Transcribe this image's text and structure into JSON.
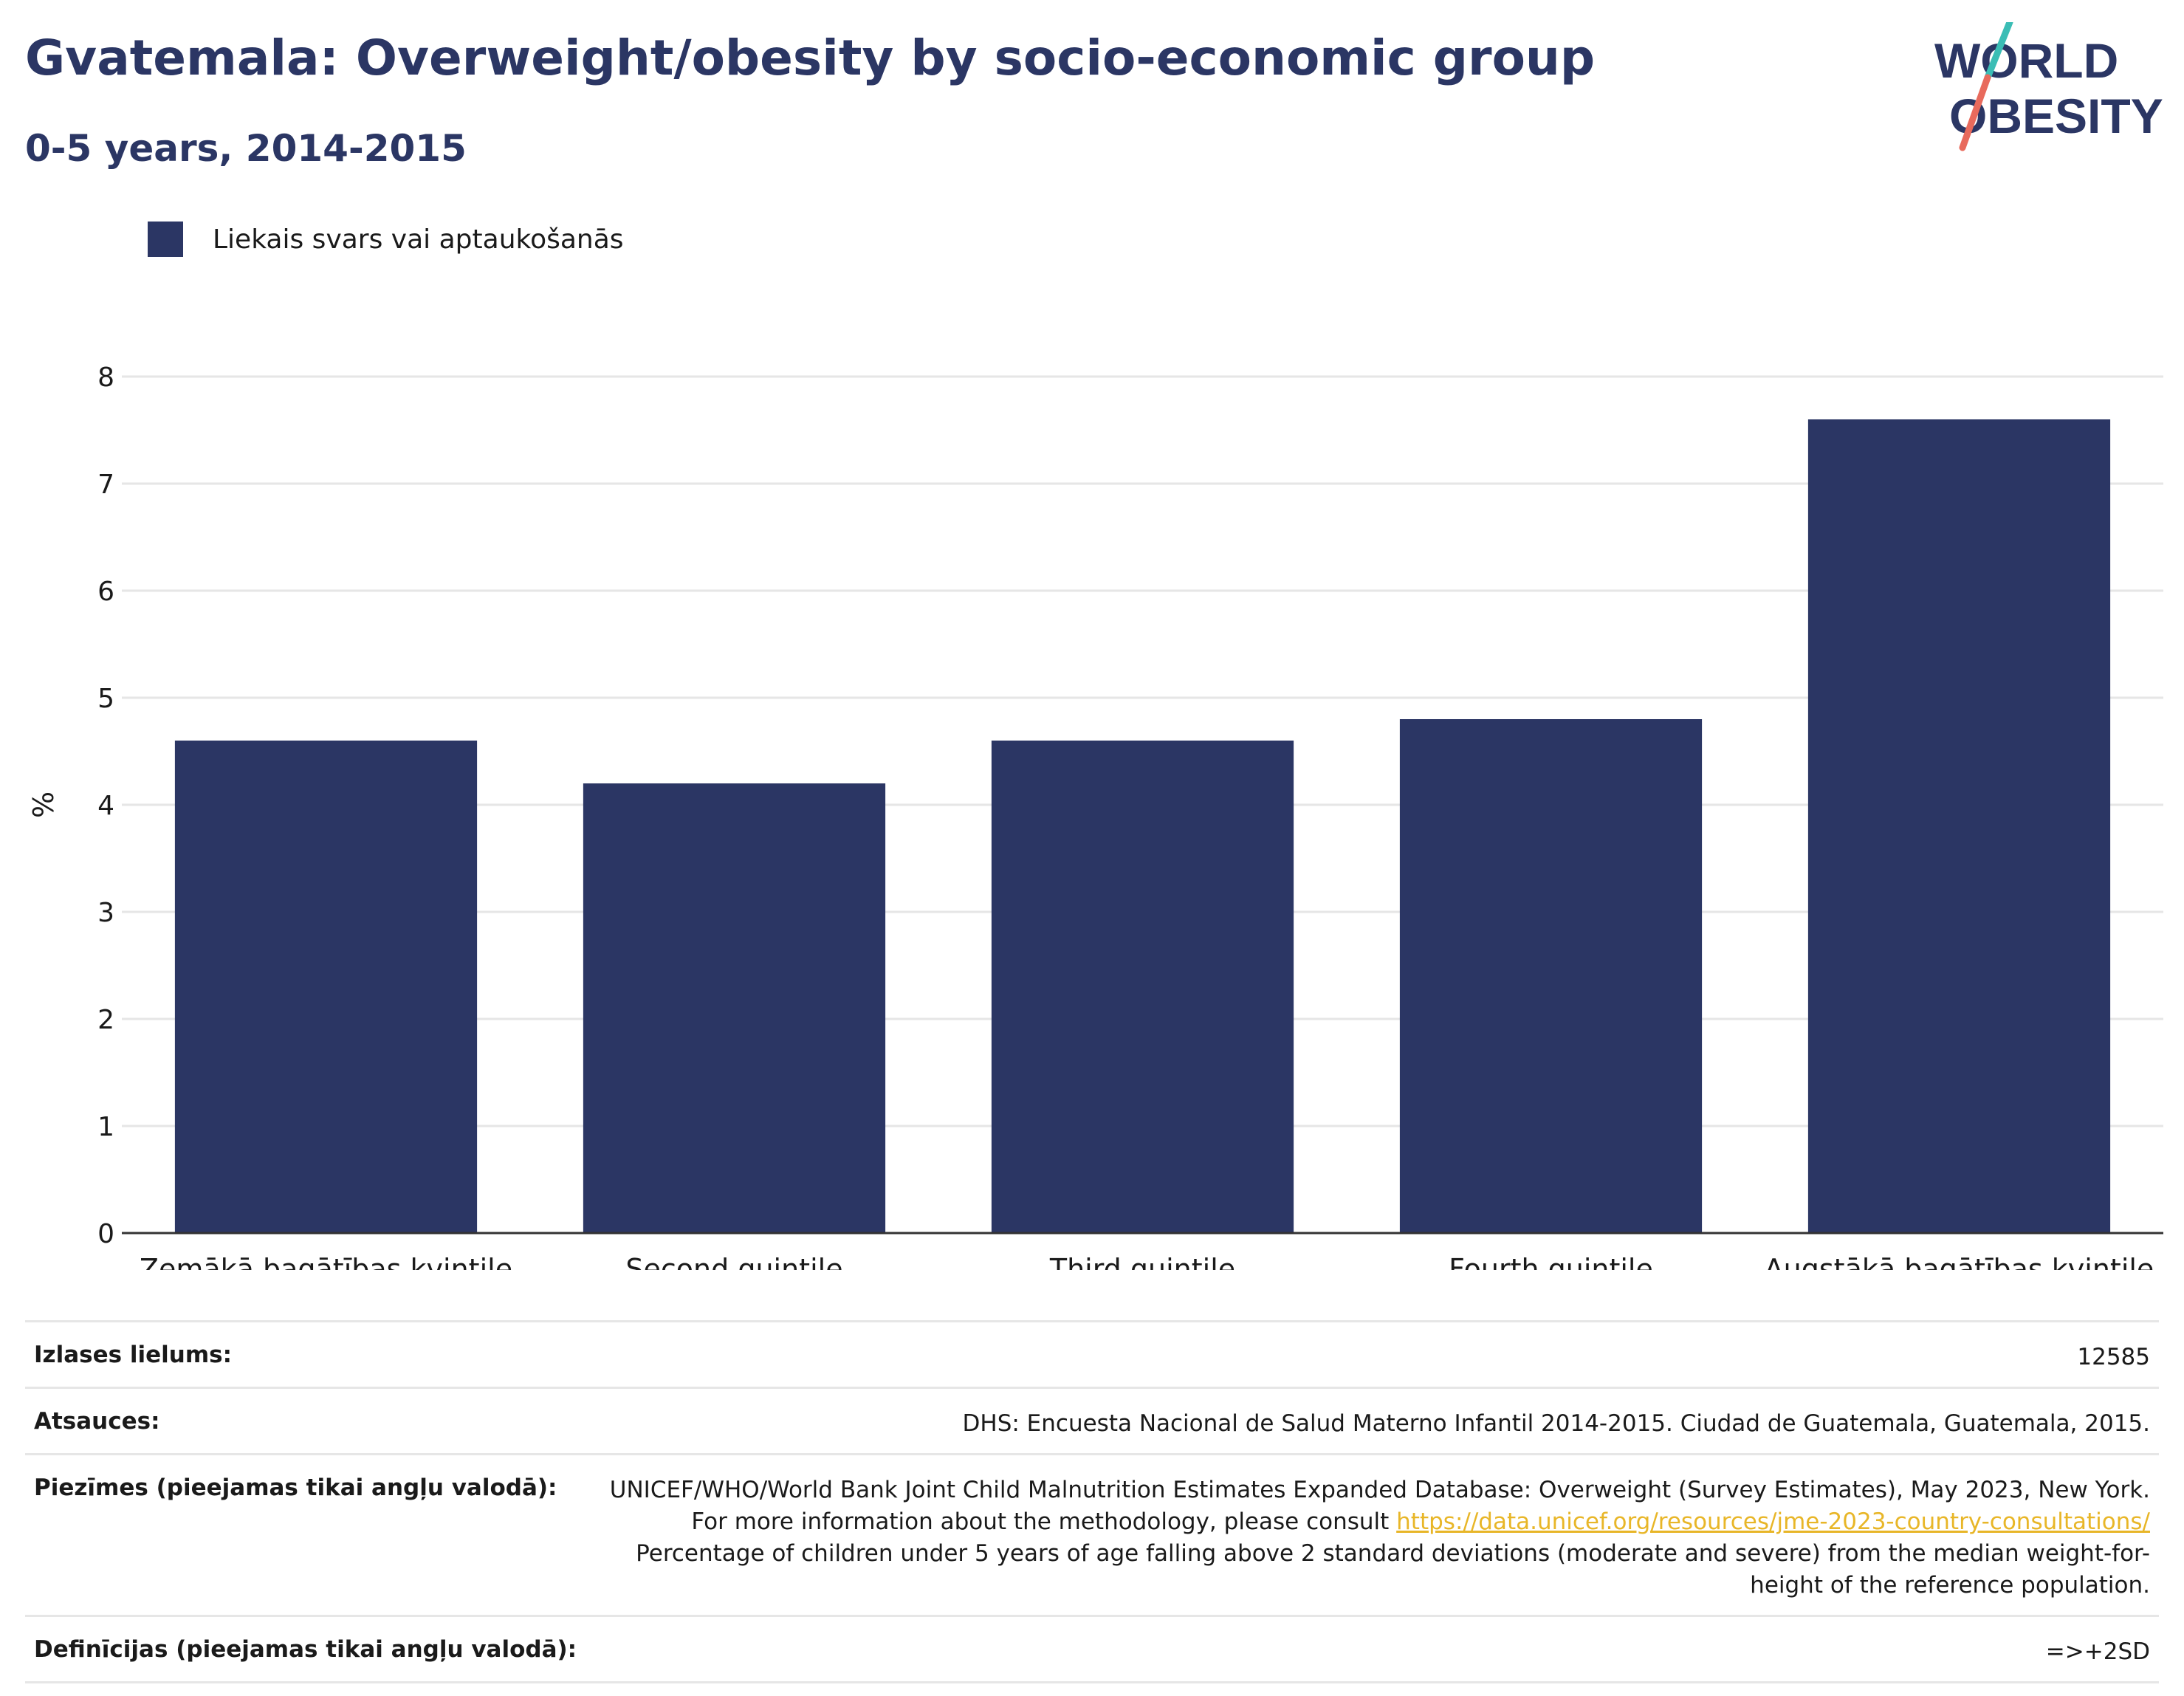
{
  "header": {
    "title": "Gvatemala: Overweight/obesity by socio-economic group",
    "subtitle": "0-5 years, 2014-2015"
  },
  "logo": {
    "line1": "WORLD",
    "line2": "OBESITY",
    "accent_teal": "#3bbdb5",
    "accent_coral": "#e86a5c",
    "text_color": "#2b3664"
  },
  "colors": {
    "bar": "#2b3664",
    "grid": "#e6e6e6",
    "axis": "#333333"
  },
  "chart_data": {
    "type": "bar",
    "categories": [
      "Zemākā bagātības kvintile",
      "Second quintile",
      "Third quintile",
      "Fourth quintile",
      "Augstākā bagātības kvintile"
    ],
    "series": [
      {
        "name": "Liekais svars vai aptaukošanās",
        "values": [
          4.6,
          4.2,
          4.6,
          4.8,
          7.6
        ]
      }
    ],
    "title": "Gvatemala: Overweight/obesity by socio-economic group",
    "subtitle": "0-5 years, 2014-2015",
    "xlabel": "",
    "ylabel": "%",
    "ylim": [
      0,
      8
    ],
    "yticks": [
      0,
      1,
      2,
      3,
      4,
      5,
      6,
      7,
      8
    ],
    "grid": true,
    "legend": "top-left"
  },
  "info": {
    "sample_label": "Izlases lielums:",
    "sample_value": "12585",
    "sources_label": "Atsauces:",
    "sources_value": "DHS: Encuesta Nacional de Salud Materno Infantil 2014-2015. Ciudad de Guatemala, Guatemala, 2015.",
    "notes_label": "Piezīmes (pieejamas tikai angļu valodā):",
    "notes_text_1": "UNICEF/WHO/World Bank Joint Child Malnutrition Estimates Expanded Database: Overweight (Survey Estimates), May 2023, New York. For more information about the methodology, please consult ",
    "notes_link": "https://data.unicef.org/resources/jme-2023-country-consultations/",
    "notes_text_2": "Percentage of children under 5 years of age falling above 2 standard deviations (moderate and severe) from the median weight-for-height of the reference population.",
    "definitions_label": "Definīcijas (pieejamas tikai angļu valodā):",
    "definitions_value": "=>+2SD"
  }
}
